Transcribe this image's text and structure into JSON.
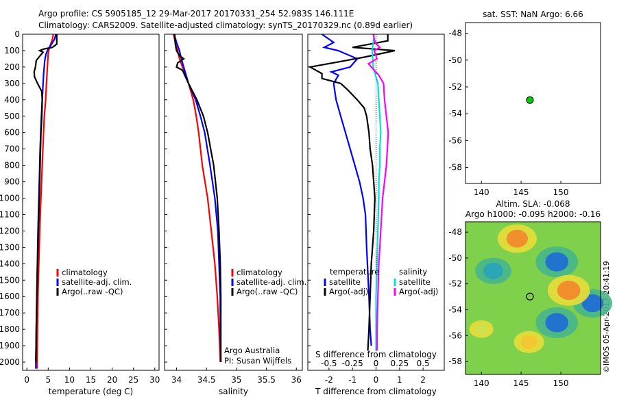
{
  "header": {
    "line1": "Argo profile: CS 5905185_12 29-Mar-2017 20170331_254 52.983S 146.111E",
    "line2": "Climatology: CARS2009. Satellite-adjusted climatology: synTS_20170329.nc (0.89d earlier)"
  },
  "watermark": "©IMOS 05-Apr-2017 20:41:19",
  "colors": {
    "climatology": "#ff0000",
    "satellite": "#0000ff",
    "argo": "#000000",
    "salinity_satellite": "#00e0e0",
    "salinity_argo": "#ff00ff",
    "marker": "#00cc00"
  },
  "chart_data": [
    {
      "id": "temperature",
      "type": "line",
      "xlabel": "temperature (deg C)",
      "ylabel": "",
      "xlim": [
        -1,
        31
      ],
      "ylim": [
        2050,
        0
      ],
      "xticks": [
        0,
        5,
        10,
        15,
        20,
        25,
        30
      ],
      "yticks": [
        0,
        100,
        200,
        300,
        400,
        500,
        600,
        700,
        800,
        900,
        1000,
        1100,
        1200,
        1300,
        1400,
        1500,
        1600,
        1700,
        1800,
        1900,
        2000
      ],
      "legend": {
        "placement": "lower-middle",
        "entries": [
          "climatology",
          "satellite-adj. clim.",
          "Argo(..raw -QC)"
        ]
      },
      "series": [
        {
          "name": "climatology",
          "color": "#ff0000",
          "points": [
            [
              6.2,
              0
            ],
            [
              6.0,
              30
            ],
            [
              5.6,
              60
            ],
            [
              5.2,
              90
            ],
            [
              5.0,
              120
            ],
            [
              4.9,
              160
            ],
            [
              4.8,
              200
            ],
            [
              4.6,
              300
            ],
            [
              4.4,
              400
            ],
            [
              4.1,
              500
            ],
            [
              3.9,
              600
            ],
            [
              3.6,
              800
            ],
            [
              3.3,
              1000
            ],
            [
              3.0,
              1200
            ],
            [
              2.8,
              1400
            ],
            [
              2.6,
              1600
            ],
            [
              2.5,
              1800
            ],
            [
              2.4,
              2000
            ],
            [
              2.4,
              2040
            ]
          ]
        },
        {
          "name": "satellite-adj. clim.",
          "color": "#0000ff",
          "points": [
            [
              6.8,
              0
            ],
            [
              6.5,
              30
            ],
            [
              5.8,
              60
            ],
            [
              5.0,
              90
            ],
            [
              4.5,
              120
            ],
            [
              4.2,
              160
            ],
            [
              3.9,
              250
            ],
            [
              3.6,
              400
            ],
            [
              3.4,
              500
            ],
            [
              3.1,
              700
            ],
            [
              2.9,
              900
            ],
            [
              2.6,
              1200
            ],
            [
              2.4,
              1500
            ],
            [
              2.2,
              1800
            ],
            [
              2.1,
              2000
            ],
            [
              2.1,
              2040
            ]
          ]
        },
        {
          "name": "Argo(..raw -QC)",
          "color": "#000000",
          "points": [
            [
              7.0,
              0
            ],
            [
              7.0,
              60
            ],
            [
              6.0,
              80
            ],
            [
              4.0,
              90
            ],
            [
              3.0,
              100
            ],
            [
              3.8,
              110
            ],
            [
              2.2,
              160
            ],
            [
              2.0,
              200
            ],
            [
              1.7,
              230
            ],
            [
              1.8,
              260
            ],
            [
              2.5,
              300
            ],
            [
              3.5,
              350
            ],
            [
              3.6,
              400
            ],
            [
              3.5,
              500
            ],
            [
              3.3,
              600
            ],
            [
              3.1,
              800
            ],
            [
              2.9,
              1000
            ],
            [
              2.7,
              1200
            ],
            [
              2.4,
              1500
            ],
            [
              2.2,
              1800
            ],
            [
              2.1,
              2000
            ]
          ]
        }
      ]
    },
    {
      "id": "salinity",
      "type": "line",
      "xlabel": "salinity",
      "ylabel": "",
      "xlim": [
        33.8,
        36.1
      ],
      "ylim": [
        2050,
        0
      ],
      "xticks": [
        34,
        34.5,
        35,
        35.5,
        36
      ],
      "legend": {
        "placement": "lower-right",
        "entries": [
          "climatology",
          "satellite-adj. clim.",
          "Argo(..raw -QC)"
        ]
      },
      "annotations": [
        "Argo Australia",
        "PI: Susan Wijffels"
      ],
      "series": [
        {
          "name": "climatology",
          "color": "#ff0000",
          "points": [
            [
              33.95,
              0
            ],
            [
              33.98,
              50
            ],
            [
              34.02,
              100
            ],
            [
              34.05,
              150
            ],
            [
              34.1,
              200
            ],
            [
              34.2,
              300
            ],
            [
              34.28,
              400
            ],
            [
              34.33,
              500
            ],
            [
              34.37,
              600
            ],
            [
              34.43,
              800
            ],
            [
              34.52,
              1000
            ],
            [
              34.58,
              1200
            ],
            [
              34.64,
              1400
            ],
            [
              34.68,
              1600
            ],
            [
              34.71,
              1800
            ],
            [
              34.73,
              2000
            ]
          ]
        },
        {
          "name": "satellite-adj. clim.",
          "color": "#0000ff",
          "points": [
            [
              33.96,
              0
            ],
            [
              34.0,
              50
            ],
            [
              34.05,
              100
            ],
            [
              34.08,
              150
            ],
            [
              34.12,
              200
            ],
            [
              34.2,
              300
            ],
            [
              34.32,
              400
            ],
            [
              34.4,
              500
            ],
            [
              34.47,
              600
            ],
            [
              34.56,
              800
            ],
            [
              34.64,
              1000
            ],
            [
              34.69,
              1200
            ],
            [
              34.71,
              1400
            ],
            [
              34.73,
              1600
            ],
            [
              34.73,
              1800
            ],
            [
              34.74,
              2000
            ]
          ]
        },
        {
          "name": "Argo(..raw -QC)",
          "color": "#000000",
          "points": [
            [
              33.97,
              0
            ],
            [
              33.98,
              60
            ],
            [
              34.0,
              100
            ],
            [
              34.05,
              130
            ],
            [
              34.12,
              150
            ],
            [
              34.02,
              175
            ],
            [
              34.0,
              200
            ],
            [
              34.1,
              220
            ],
            [
              34.2,
              300
            ],
            [
              34.34,
              400
            ],
            [
              34.45,
              500
            ],
            [
              34.52,
              600
            ],
            [
              34.62,
              800
            ],
            [
              34.68,
              1000
            ],
            [
              34.71,
              1200
            ],
            [
              34.73,
              1400
            ],
            [
              34.74,
              1600
            ],
            [
              34.74,
              1800
            ],
            [
              34.74,
              2000
            ]
          ]
        }
      ]
    },
    {
      "id": "differences",
      "type": "line",
      "xlabel": "T difference from climatology",
      "x2label": "S difference from climatology",
      "xlim": [
        -2.9,
        2.9
      ],
      "ylim": [
        2050,
        0
      ],
      "xticks": [
        -2,
        -1,
        0,
        1,
        2
      ],
      "xticks_top": [
        "-0.5",
        "-0.25",
        "0",
        "0.25",
        "0.5"
      ],
      "legend": {
        "placement": "lower-middle",
        "groups": [
          "temperature",
          "salinity"
        ],
        "entries": [
          "satellite",
          "Argo(-adj)",
          "satellite",
          "Argo(-adj)"
        ]
      },
      "series": [
        {
          "name": "satellite",
          "group": "temperature",
          "color": "#0000ff",
          "points": [
            [
              -2.3,
              0
            ],
            [
              -1.8,
              50
            ],
            [
              -2.2,
              80
            ],
            [
              -1.6,
              100
            ],
            [
              -0.8,
              150
            ],
            [
              -1.1,
              200
            ],
            [
              -1.9,
              230
            ],
            [
              -1.6,
              250
            ],
            [
              -1.8,
              300
            ],
            [
              -1.7,
              400
            ],
            [
              -1.5,
              500
            ],
            [
              -1.3,
              600
            ],
            [
              -1.1,
              700
            ],
            [
              -0.9,
              800
            ],
            [
              -0.7,
              900
            ],
            [
              -0.55,
              1000
            ],
            [
              -0.45,
              1100
            ],
            [
              -0.4,
              1300
            ],
            [
              -0.3,
              1600
            ],
            [
              -0.25,
              1800
            ],
            [
              -0.2,
              1900
            ]
          ]
        },
        {
          "name": "Argo(-adj)",
          "group": "temperature",
          "color": "#000000",
          "points": [
            [
              0.5,
              0
            ],
            [
              0.5,
              40
            ],
            [
              -1.0,
              80
            ],
            [
              0.8,
              100
            ],
            [
              -0.5,
              140
            ],
            [
              -2.8,
              200
            ],
            [
              -2.3,
              240
            ],
            [
              -2.3,
              270
            ],
            [
              -1.5,
              300
            ],
            [
              -1.2,
              340
            ],
            [
              -0.8,
              400
            ],
            [
              -0.5,
              450
            ],
            [
              -0.4,
              500
            ],
            [
              -0.3,
              600
            ],
            [
              -0.25,
              700
            ],
            [
              -0.15,
              800
            ],
            [
              -0.1,
              900
            ],
            [
              -0.05,
              1000
            ],
            [
              -0.1,
              1200
            ],
            [
              -0.2,
              1400
            ],
            [
              -0.25,
              1600
            ],
            [
              -0.3,
              1800
            ],
            [
              -0.35,
              1930
            ]
          ]
        },
        {
          "name": "satellite",
          "group": "salinity",
          "color": "#00e0e0",
          "points": [
            [
              -0.02,
              0
            ],
            [
              -0.04,
              100
            ],
            [
              -0.03,
              200
            ],
            [
              0.02,
              300
            ],
            [
              0.03,
              400
            ],
            [
              0.04,
              500
            ],
            [
              0.05,
              600
            ],
            [
              0.04,
              700
            ],
            [
              0.04,
              800
            ],
            [
              0.03,
              900
            ],
            [
              0.03,
              1000
            ],
            [
              0.02,
              1200
            ],
            [
              0.01,
              1400
            ],
            [
              0.0,
              1600
            ],
            [
              0.0,
              1800
            ],
            [
              0.0,
              1930
            ]
          ]
        },
        {
          "name": "Argo(-adj)",
          "group": "salinity",
          "color": "#ff00ff",
          "points": [
            [
              -0.03,
              0
            ],
            [
              -0.01,
              50
            ],
            [
              0.04,
              80
            ],
            [
              -0.02,
              100
            ],
            [
              0.01,
              150
            ],
            [
              -0.08,
              180
            ],
            [
              -0.05,
              200
            ],
            [
              0.03,
              250
            ],
            [
              0.08,
              300
            ],
            [
              0.09,
              400
            ],
            [
              0.11,
              500
            ],
            [
              0.13,
              600
            ],
            [
              0.12,
              700
            ],
            [
              0.11,
              800
            ],
            [
              0.09,
              900
            ],
            [
              0.07,
              1000
            ],
            [
              0.05,
              1200
            ],
            [
              0.03,
              1400
            ],
            [
              0.02,
              1600
            ],
            [
              0.01,
              1800
            ],
            [
              0.01,
              1930
            ]
          ]
        }
      ]
    },
    {
      "id": "sst-map",
      "type": "scatter",
      "title": "sat. SST: NaN Argo: 6.66",
      "xlim": [
        138,
        155
      ],
      "ylim": [
        -59.2,
        -47.2
      ],
      "xticks": [
        140,
        145,
        150
      ],
      "yticks": [
        -48,
        -50,
        -52,
        -54,
        -56,
        -58
      ],
      "points": [
        [
          146.11,
          -52.98
        ]
      ]
    },
    {
      "id": "sla-map",
      "type": "heatmap",
      "title": "Altim. SLA: -0.068",
      "subtitle": "Argo h1000: -0.095 h2000: -0.16",
      "xlim": [
        138,
        155
      ],
      "ylim": [
        -59,
        -47.2
      ],
      "xticks": [
        140,
        145,
        150
      ],
      "yticks": [
        -48,
        -50,
        -52,
        -54,
        -56,
        -58
      ],
      "features": [
        {
          "lon": 149.5,
          "lat": -50.3,
          "value": -1.0
        },
        {
          "lon": 141.5,
          "lat": -51.0,
          "value": -0.8
        },
        {
          "lon": 149.5,
          "lat": -55.0,
          "value": -1.0
        },
        {
          "lon": 154.0,
          "lat": -53.5,
          "value": -0.9
        },
        {
          "lon": 151.0,
          "lat": -52.5,
          "value": 1.0
        },
        {
          "lon": 144.5,
          "lat": -48.5,
          "value": 0.9
        },
        {
          "lon": 146.0,
          "lat": -56.5,
          "value": 0.6
        },
        {
          "lon": 140.0,
          "lat": -55.5,
          "value": 0.4
        }
      ],
      "points": [
        [
          146.11,
          -52.98
        ]
      ]
    }
  ]
}
